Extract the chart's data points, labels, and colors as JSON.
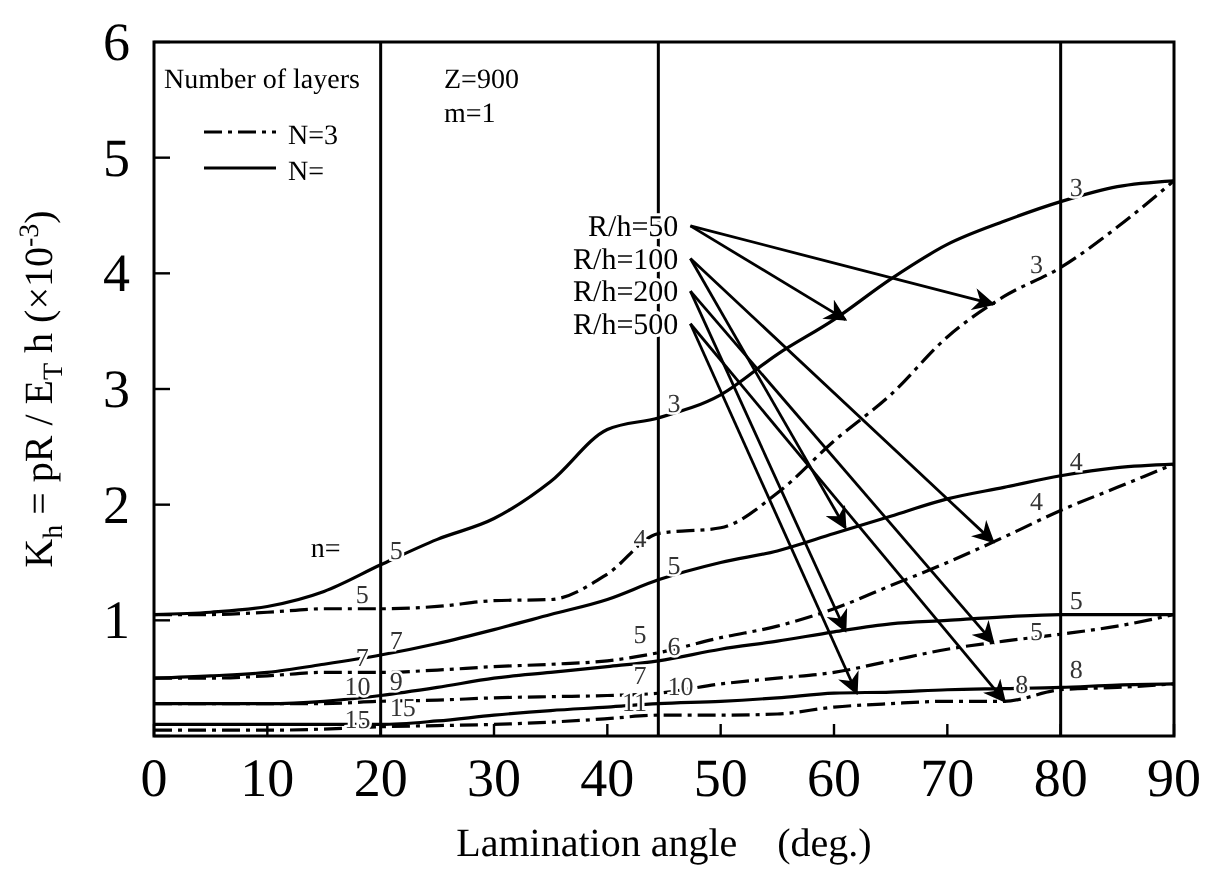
{
  "chart_data": {
    "type": "line",
    "xlabel": "Lamination angle    (deg.)",
    "ylabel": "K$_{h}$ = pR / E$_{T}$ h  (×10$^{-3}$)",
    "legend_title": "Number of layers",
    "legend": "top left",
    "grid": false,
    "marker": "none",
    "xlim": [
      0,
      90
    ],
    "xticks": [
      0,
      10,
      20,
      30,
      40,
      50,
      60,
      70,
      80,
      90
    ],
    "ylim": [
      0,
      6
    ],
    "yticks": [
      {
        "value": 0,
        "label": null
      },
      1,
      2,
      3,
      4,
      5,
      6
    ],
    "series": [
      {
        "name": "N=",
        "color": "#000000",
        "line_style": "solid",
        "x": [
          0,
          5,
          10,
          15,
          20,
          25,
          30,
          35,
          40,
          44.5,
          50,
          55,
          60,
          65,
          70,
          75,
          80,
          85,
          90
        ],
        "values": [
          1.05,
          1.07,
          1.12,
          1.25,
          1.48,
          1.7,
          1.88,
          2.2,
          2.65,
          2.75,
          2.95,
          3.3,
          3.6,
          3.95,
          4.25,
          4.45,
          4.62,
          4.75,
          4.8
        ]
      },
      {
        "name": "N=3",
        "color": "#000000",
        "line_style": "dashed",
        "x": [
          0,
          5,
          10,
          15,
          20,
          25,
          30,
          35,
          40,
          44.5,
          50,
          55,
          60,
          65,
          70,
          75,
          80,
          85,
          90
        ],
        "values": [
          1.05,
          1.05,
          1.07,
          1.1,
          1.1,
          1.12,
          1.17,
          1.18,
          1.4,
          1.75,
          1.8,
          2.1,
          2.55,
          2.95,
          3.45,
          3.8,
          4.05,
          4.4,
          4.8
        ]
      },
      {
        "color": "#000000",
        "line_style": "solid",
        "x": [
          0,
          5,
          10,
          15,
          20,
          25,
          30,
          35,
          40,
          44.5,
          50,
          55,
          60,
          65,
          70,
          75,
          80,
          85,
          90
        ],
        "values": [
          0.5,
          0.52,
          0.55,
          0.62,
          0.7,
          0.8,
          0.92,
          1.05,
          1.18,
          1.35,
          1.5,
          1.6,
          1.75,
          1.9,
          2.05,
          2.15,
          2.25,
          2.32,
          2.35
        ]
      },
      {
        "color": "#000000",
        "line_style": "dashed",
        "x": [
          0,
          5,
          10,
          15,
          20,
          25,
          30,
          35,
          40,
          44.5,
          50,
          55,
          60,
          65,
          70,
          75,
          80,
          85,
          90
        ],
        "values": [
          0.5,
          0.5,
          0.52,
          0.55,
          0.55,
          0.57,
          0.6,
          0.62,
          0.65,
          0.72,
          0.85,
          0.95,
          1.1,
          1.3,
          1.5,
          1.72,
          1.95,
          2.15,
          2.35
        ]
      },
      {
        "color": "#000000",
        "line_style": "solid",
        "x": [
          0,
          5,
          10,
          15,
          20,
          25,
          30,
          35,
          40,
          44.5,
          50,
          55,
          60,
          65,
          70,
          75,
          80,
          85,
          90
        ],
        "values": [
          0.28,
          0.28,
          0.28,
          0.3,
          0.35,
          0.42,
          0.5,
          0.55,
          0.6,
          0.65,
          0.75,
          0.82,
          0.9,
          0.97,
          1.0,
          1.03,
          1.05,
          1.05,
          1.05
        ]
      },
      {
        "color": "#000000",
        "line_style": "dashed",
        "x": [
          0,
          5,
          10,
          15,
          20,
          25,
          30,
          35,
          40,
          44.5,
          50,
          55,
          60,
          65,
          70,
          75,
          80,
          85,
          90
        ],
        "values": [
          0.28,
          0.28,
          0.28,
          0.28,
          0.3,
          0.31,
          0.33,
          0.34,
          0.35,
          0.37,
          0.45,
          0.5,
          0.55,
          0.65,
          0.75,
          0.82,
          0.88,
          0.95,
          1.05
        ]
      },
      {
        "color": "#000000",
        "line_style": "solid",
        "x": [
          0,
          5,
          10,
          15,
          20,
          25,
          30,
          35,
          40,
          44.5,
          50,
          55,
          60,
          65,
          70,
          75,
          80,
          85,
          90
        ],
        "values": [
          0.1,
          0.1,
          0.1,
          0.1,
          0.1,
          0.13,
          0.18,
          0.22,
          0.25,
          0.28,
          0.3,
          0.33,
          0.37,
          0.38,
          0.4,
          0.41,
          0.42,
          0.44,
          0.45
        ]
      },
      {
        "color": "#000000",
        "line_style": "dashed",
        "x": [
          0,
          5,
          10,
          15,
          20,
          25,
          30,
          35,
          40,
          44.5,
          50,
          55,
          60,
          65,
          70,
          75,
          80,
          85,
          90
        ],
        "values": [
          0.05,
          0.05,
          0.05,
          0.06,
          0.08,
          0.09,
          0.1,
          0.12,
          0.15,
          0.18,
          0.18,
          0.19,
          0.25,
          0.28,
          0.3,
          0.3,
          0.4,
          0.42,
          0.45
        ]
      }
    ],
    "ref_lines": [
      {
        "axis": "x",
        "value": 20,
        "label": "n="
      },
      {
        "axis": "x",
        "value": 44.5
      },
      {
        "axis": "x",
        "value": 80
      }
    ],
    "annotations": [
      "Z=900",
      "m=1",
      {
        "text": "R/h=50",
        "x": 61,
        "y": 3.6
      },
      {
        "text": "R/h=100",
        "x": 61,
        "y": 1.8
      },
      {
        "text": "R/h=200",
        "x": 61,
        "y": 0.91
      },
      {
        "text": "R/h=500",
        "x": 62,
        "y": 0.37
      },
      {
        "text": "5",
        "x": 20.8,
        "y": 1.48
      },
      {
        "text": "7",
        "x": 20.8,
        "y": 0.7
      },
      {
        "text": "9",
        "x": 20.8,
        "y": 0.35
      },
      {
        "text": "15",
        "x": 20.8,
        "y": 0.12
      },
      {
        "text": "5",
        "x": 17.8,
        "y": 1.1
      },
      {
        "text": "7",
        "x": 17.8,
        "y": 0.55
      },
      {
        "text": "10",
        "x": 16.8,
        "y": 0.3
      },
      {
        "text": "15",
        "x": 16.8,
        "y": 0.02
      },
      {
        "text": "3",
        "x": 45.3,
        "y": 2.75
      },
      {
        "text": "5",
        "x": 45.3,
        "y": 1.35
      },
      {
        "text": "6",
        "x": 45.3,
        "y": 0.65
      },
      {
        "text": "10",
        "x": 45.3,
        "y": 0.3
      },
      {
        "text": "4",
        "x": 42.3,
        "y": 1.58
      },
      {
        "text": "5",
        "x": 42.3,
        "y": 0.75
      },
      {
        "text": "7",
        "x": 42.3,
        "y": 0.4
      },
      {
        "text": "11",
        "x": 41.3,
        "y": 0.16
      },
      {
        "text": "3",
        "x": 80.8,
        "y": 4.62
      },
      {
        "text": "4",
        "x": 80.8,
        "y": 2.25
      },
      {
        "text": "5",
        "x": 80.8,
        "y": 1.05
      },
      {
        "text": "8",
        "x": 80.8,
        "y": 0.45
      },
      {
        "text": "3",
        "x": 77.3,
        "y": 3.95
      },
      {
        "text": "4",
        "x": 77.3,
        "y": 1.9
      },
      {
        "text": "5",
        "x": 77.3,
        "y": 0.78
      },
      {
        "text": "8",
        "x": 76,
        "y": 0.32
      }
    ]
  }
}
